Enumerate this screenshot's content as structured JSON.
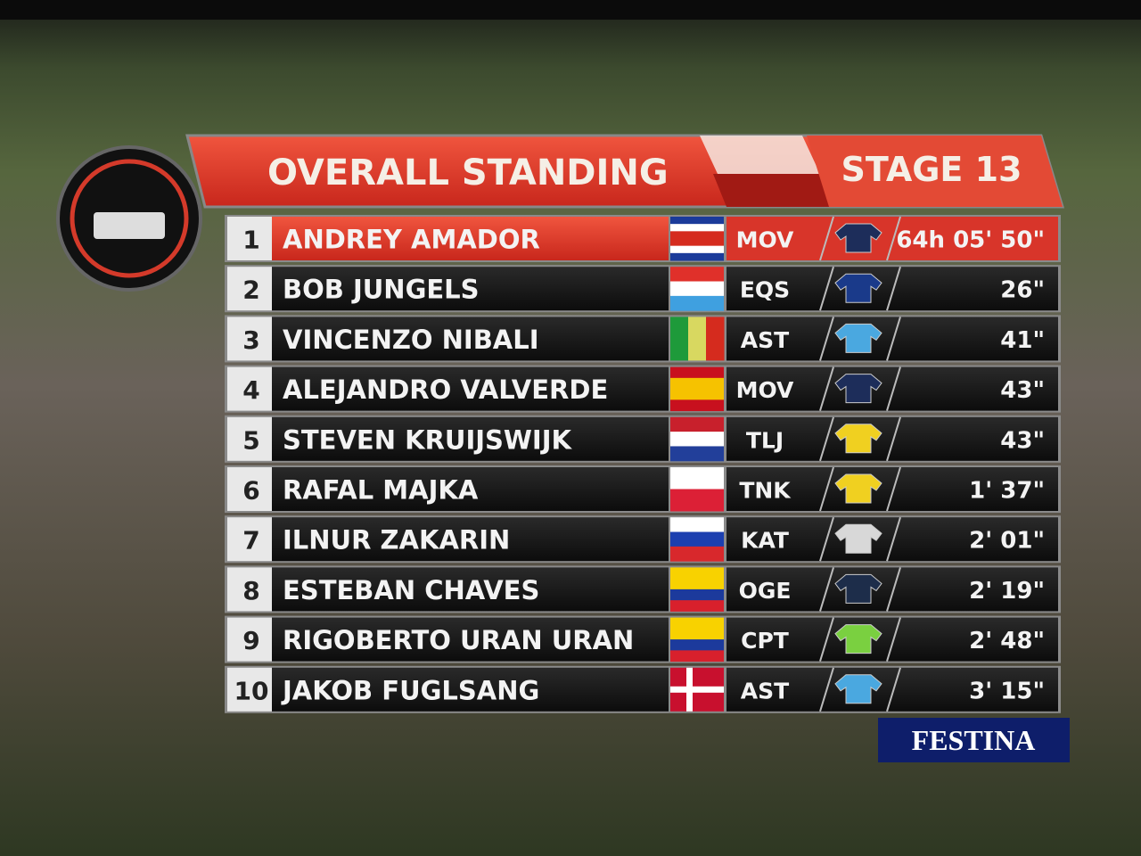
{
  "header": {
    "title": "OVERALL STANDING",
    "stage": "STAGE 13"
  },
  "rows": [
    {
      "rank": 1,
      "name": "ANDREY AMADOR",
      "team": "MOV",
      "time": "64h 05' 50\""
    },
    {
      "rank": 2,
      "name": "BOB JUNGELS",
      "team": "EQS",
      "time": "26\""
    },
    {
      "rank": 3,
      "name": "VINCENZO NIBALI",
      "team": "AST",
      "time": "41\""
    },
    {
      "rank": 4,
      "name": "ALEJANDRO VALVERDE",
      "team": "MOV",
      "time": "43\""
    },
    {
      "rank": 5,
      "name": "STEVEN KRUIJSWIJK",
      "team": "TLJ",
      "time": "43\""
    },
    {
      "rank": 6,
      "name": "RAFAL MAJKA",
      "team": "TNK",
      "time": "1' 37\""
    },
    {
      "rank": 7,
      "name": "ILNUR ZAKARIN",
      "team": "KAT",
      "time": "2' 01\""
    },
    {
      "rank": 8,
      "name": "ESTEBAN CHAVES",
      "team": "OGE",
      "time": "2' 19\""
    },
    {
      "rank": 9,
      "name": "RIGOBERTO URAN URAN",
      "team": "CPT",
      "time": "2' 48\""
    },
    {
      "rank": 10,
      "name": "JAKOB FUGLSANG",
      "team": "AST",
      "time": "3' 15\""
    }
  ],
  "sponsor": "FESTINA"
}
